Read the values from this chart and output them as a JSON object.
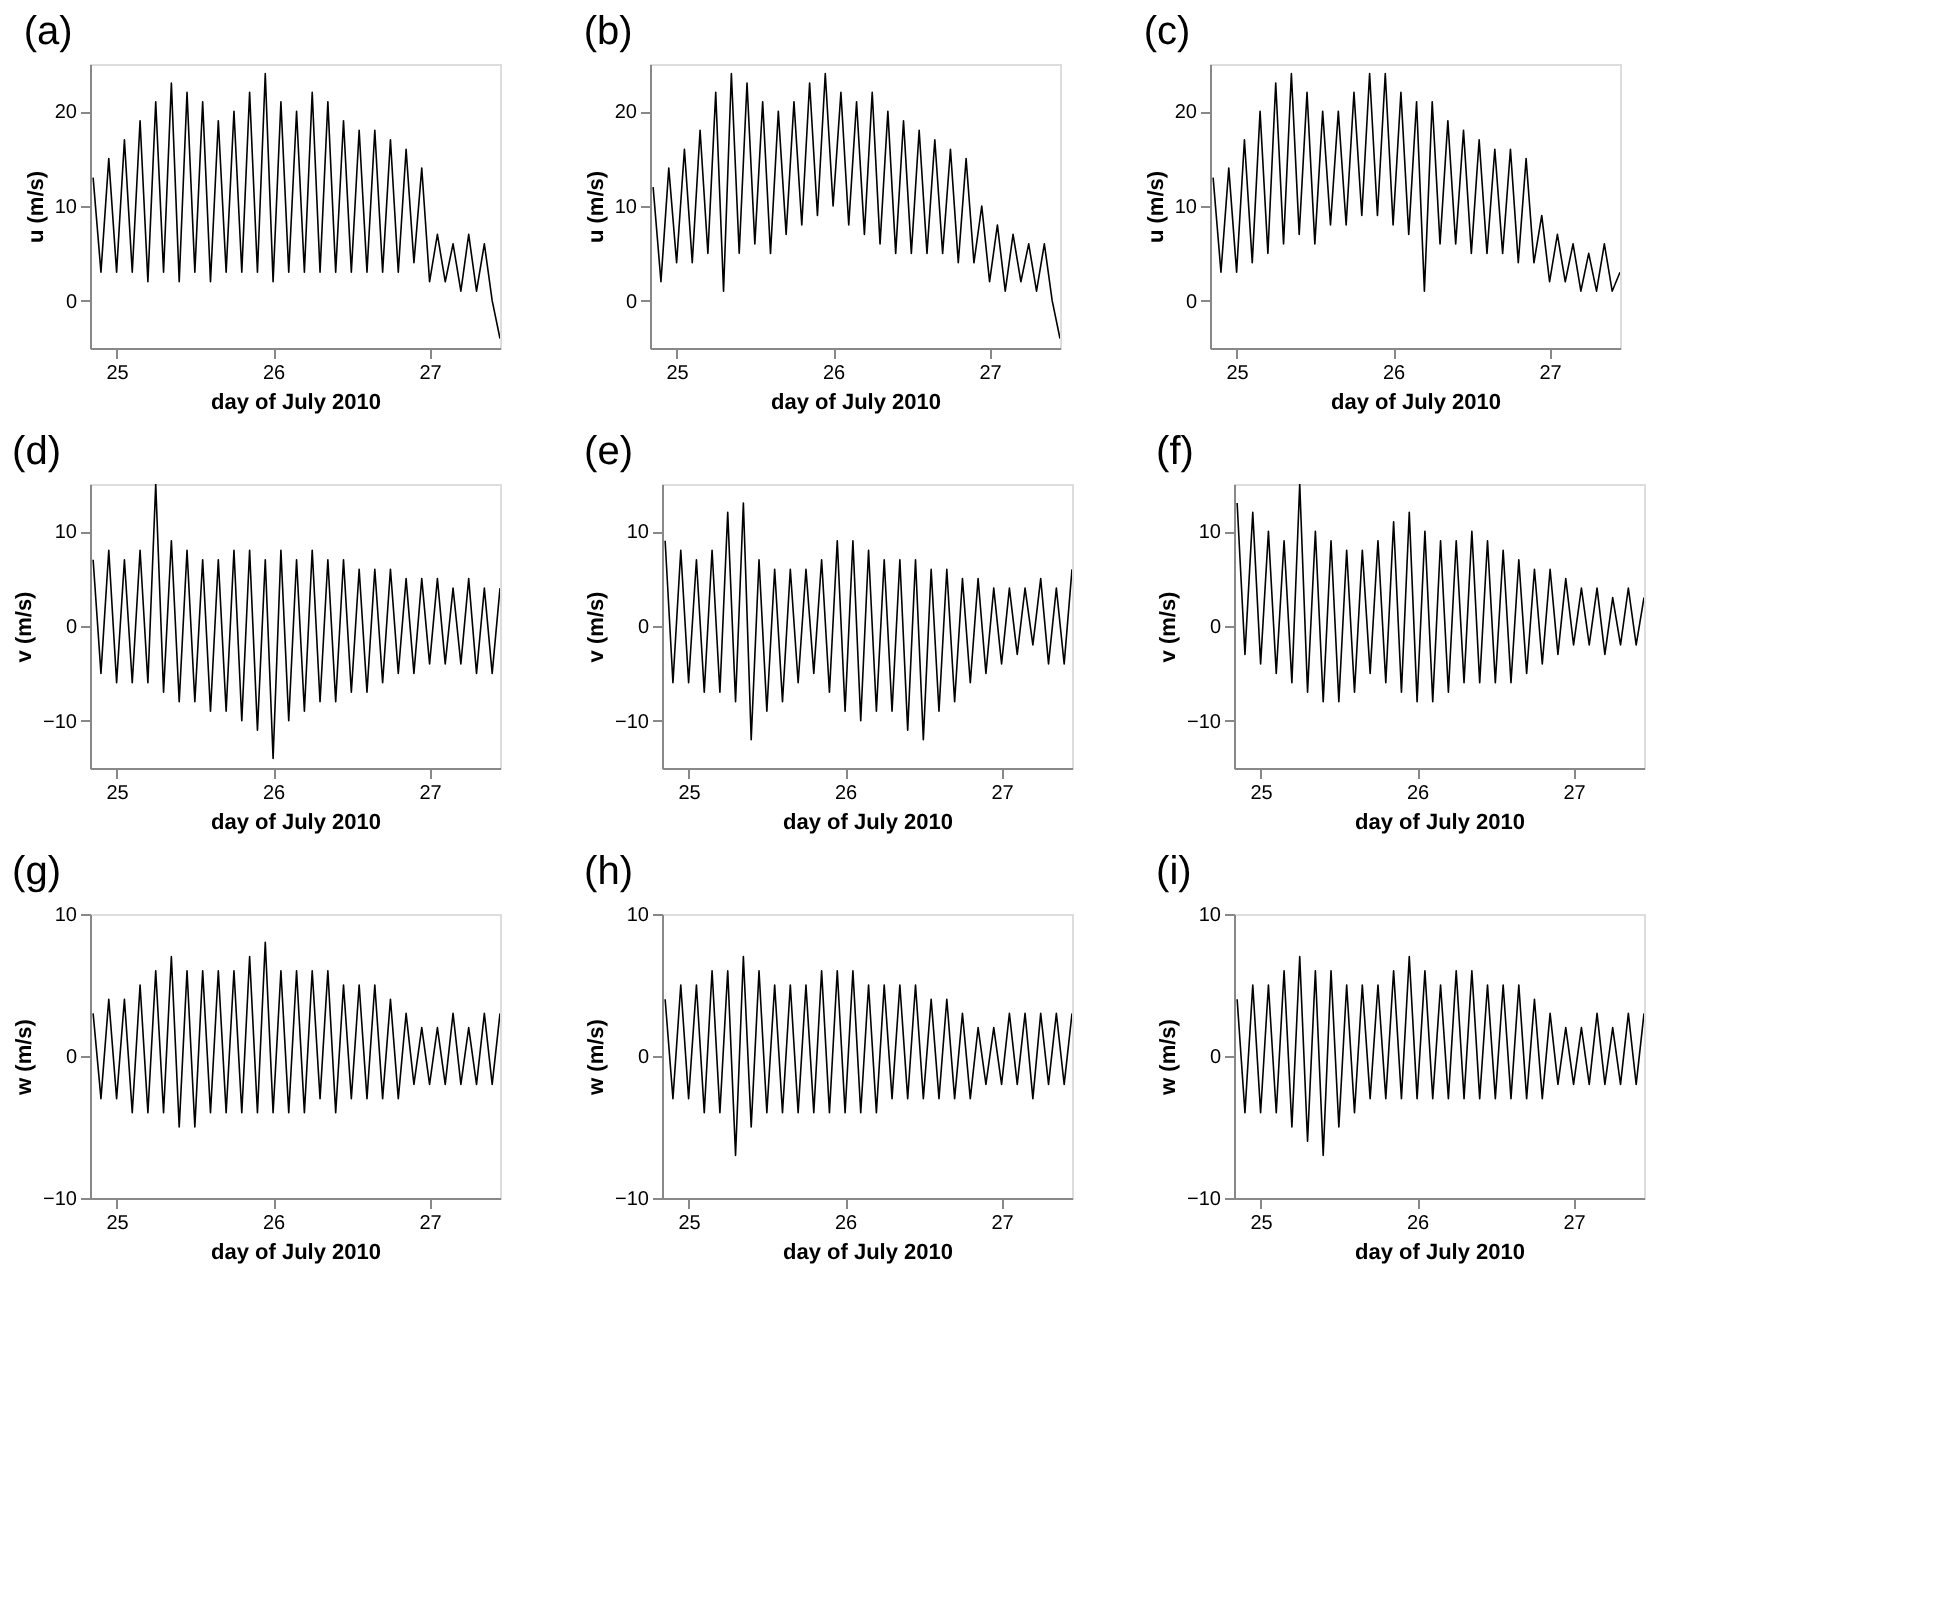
{
  "chart_data": [
    {
      "type": "line",
      "title": "(a)",
      "xlabel": "day of July 2010",
      "ylabel": "u (m/s)",
      "xlim": [
        24.83,
        27.45
      ],
      "xticks": [
        25,
        26,
        27
      ],
      "ylim": [
        -5,
        25
      ],
      "yticks": [
        0,
        10,
        20
      ],
      "x": [
        24.85,
        24.9,
        24.95,
        25,
        25.05,
        25.1,
        25.15,
        25.2,
        25.25,
        25.3,
        25.35,
        25.4,
        25.45,
        25.5,
        25.55,
        25.6,
        25.65,
        25.7,
        25.75,
        25.8,
        25.85,
        25.9,
        25.95,
        26,
        26.05,
        26.1,
        26.15,
        26.2,
        26.25,
        26.3,
        26.35,
        26.4,
        26.45,
        26.5,
        26.55,
        26.6,
        26.65,
        26.7,
        26.75,
        26.8,
        26.85,
        26.9,
        26.95,
        27,
        27.05,
        27.1,
        27.15,
        27.2,
        27.25,
        27.3,
        27.35,
        27.4,
        27.45
      ],
      "series": [
        {
          "color": "#000000",
          "values": [
            13,
            3,
            15,
            3,
            17,
            3,
            19,
            2,
            21,
            3,
            23,
            2,
            22,
            3,
            21,
            2,
            19,
            3,
            20,
            3,
            22,
            3,
            24,
            2,
            21,
            3,
            20,
            3,
            22,
            3,
            21,
            3,
            19,
            3,
            18,
            3,
            18,
            3,
            17,
            3,
            16,
            4,
            14,
            2,
            7,
            2,
            6,
            1,
            7,
            1,
            6,
            0,
            -4
          ]
        }
      ]
    },
    {
      "type": "line",
      "title": "(b)",
      "xlabel": "day of July 2010",
      "ylabel": "u (m/s)",
      "xlim": [
        24.83,
        27.45
      ],
      "xticks": [
        25,
        26,
        27
      ],
      "ylim": [
        -5,
        25
      ],
      "yticks": [
        0,
        10,
        20
      ],
      "x": [
        24.85,
        24.9,
        24.95,
        25,
        25.05,
        25.1,
        25.15,
        25.2,
        25.25,
        25.3,
        25.35,
        25.4,
        25.45,
        25.5,
        25.55,
        25.6,
        25.65,
        25.7,
        25.75,
        25.8,
        25.85,
        25.9,
        25.95,
        26,
        26.05,
        26.1,
        26.15,
        26.2,
        26.25,
        26.3,
        26.35,
        26.4,
        26.45,
        26.5,
        26.55,
        26.6,
        26.65,
        26.7,
        26.75,
        26.8,
        26.85,
        26.9,
        26.95,
        27,
        27.05,
        27.1,
        27.15,
        27.2,
        27.25,
        27.3,
        27.35,
        27.4,
        27.45
      ],
      "series": [
        {
          "color": "#000000",
          "values": [
            12,
            2,
            14,
            4,
            16,
            4,
            18,
            5,
            22,
            1,
            24,
            5,
            23,
            6,
            21,
            5,
            20,
            7,
            21,
            8,
            23,
            9,
            24,
            10,
            22,
            8,
            21,
            7,
            22,
            6,
            20,
            5,
            19,
            5,
            18,
            5,
            17,
            5,
            16,
            4,
            15,
            4,
            10,
            2,
            8,
            1,
            7,
            2,
            6,
            1,
            6,
            0,
            -4
          ]
        }
      ]
    },
    {
      "type": "line",
      "title": "(c)",
      "xlabel": "day of July 2010",
      "ylabel": "u (m/s)",
      "xlim": [
        24.83,
        27.45
      ],
      "xticks": [
        25,
        26,
        27
      ],
      "ylim": [
        -5,
        25
      ],
      "yticks": [
        0,
        10,
        20
      ],
      "x": [
        24.85,
        24.9,
        24.95,
        25,
        25.05,
        25.1,
        25.15,
        25.2,
        25.25,
        25.3,
        25.35,
        25.4,
        25.45,
        25.5,
        25.55,
        25.6,
        25.65,
        25.7,
        25.75,
        25.8,
        25.85,
        25.9,
        25.95,
        26,
        26.05,
        26.1,
        26.15,
        26.2,
        26.25,
        26.3,
        26.35,
        26.4,
        26.45,
        26.5,
        26.55,
        26.6,
        26.65,
        26.7,
        26.75,
        26.8,
        26.85,
        26.9,
        26.95,
        27,
        27.05,
        27.1,
        27.15,
        27.2,
        27.25,
        27.3,
        27.35,
        27.4,
        27.45
      ],
      "series": [
        {
          "color": "#000000",
          "values": [
            13,
            3,
            14,
            3,
            17,
            4,
            20,
            5,
            23,
            6,
            24,
            7,
            22,
            6,
            20,
            8,
            20,
            8,
            22,
            9,
            24,
            9,
            24,
            8,
            22,
            7,
            21,
            1,
            21,
            6,
            19,
            6,
            18,
            5,
            17,
            5,
            16,
            5,
            16,
            4,
            15,
            4,
            9,
            2,
            7,
            2,
            6,
            1,
            5,
            1,
            6,
            1,
            3
          ]
        }
      ]
    },
    {
      "type": "line",
      "title": "(d)",
      "xlabel": "day of July 2010",
      "ylabel": "v (m/s)",
      "xlim": [
        24.83,
        27.45
      ],
      "xticks": [
        25,
        26,
        27
      ],
      "ylim": [
        -15,
        15
      ],
      "yticks": [
        -10,
        0,
        10
      ],
      "x": [
        24.85,
        24.9,
        24.95,
        25,
        25.05,
        25.1,
        25.15,
        25.2,
        25.25,
        25.3,
        25.35,
        25.4,
        25.45,
        25.5,
        25.55,
        25.6,
        25.65,
        25.7,
        25.75,
        25.8,
        25.85,
        25.9,
        25.95,
        26,
        26.05,
        26.1,
        26.15,
        26.2,
        26.25,
        26.3,
        26.35,
        26.4,
        26.45,
        26.5,
        26.55,
        26.6,
        26.65,
        26.7,
        26.75,
        26.8,
        26.85,
        26.9,
        26.95,
        27,
        27.05,
        27.1,
        27.15,
        27.2,
        27.25,
        27.3,
        27.35,
        27.4,
        27.45
      ],
      "series": [
        {
          "color": "#000000",
          "values": [
            7,
            -5,
            8,
            -6,
            7,
            -6,
            8,
            -6,
            15,
            -7,
            9,
            -8,
            8,
            -8,
            7,
            -9,
            7,
            -9,
            8,
            -10,
            8,
            -11,
            7,
            -14,
            8,
            -10,
            7,
            -9,
            8,
            -8,
            7,
            -8,
            7,
            -7,
            6,
            -7,
            6,
            -6,
            6,
            -5,
            5,
            -5,
            5,
            -4,
            5,
            -4,
            4,
            -4,
            5,
            -5,
            4,
            -5,
            4
          ]
        }
      ]
    },
    {
      "type": "line",
      "title": "(e)",
      "xlabel": "day of July 2010",
      "ylabel": "v (m/s)",
      "xlim": [
        24.83,
        27.45
      ],
      "xticks": [
        25,
        26,
        27
      ],
      "ylim": [
        -15,
        15
      ],
      "yticks": [
        -10,
        0,
        10
      ],
      "x": [
        24.85,
        24.9,
        24.95,
        25,
        25.05,
        25.1,
        25.15,
        25.2,
        25.25,
        25.3,
        25.35,
        25.4,
        25.45,
        25.5,
        25.55,
        25.6,
        25.65,
        25.7,
        25.75,
        25.8,
        25.85,
        25.9,
        25.95,
        26,
        26.05,
        26.1,
        26.15,
        26.2,
        26.25,
        26.3,
        26.35,
        26.4,
        26.45,
        26.5,
        26.55,
        26.6,
        26.65,
        26.7,
        26.75,
        26.8,
        26.85,
        26.9,
        26.95,
        27,
        27.05,
        27.1,
        27.15,
        27.2,
        27.25,
        27.3,
        27.35,
        27.4,
        27.45
      ],
      "series": [
        {
          "color": "#000000",
          "values": [
            9,
            -6,
            8,
            -6,
            7,
            -7,
            8,
            -7,
            12,
            -8,
            13,
            -12,
            7,
            -9,
            6,
            -8,
            6,
            -6,
            6,
            -5,
            7,
            -7,
            9,
            -9,
            9,
            -10,
            8,
            -9,
            7,
            -9,
            7,
            -11,
            7,
            -12,
            6,
            -9,
            6,
            -8,
            5,
            -6,
            5,
            -5,
            4,
            -4,
            4,
            -3,
            4,
            -2,
            5,
            -4,
            4,
            -4,
            6
          ]
        }
      ]
    },
    {
      "type": "line",
      "title": "(f)",
      "xlabel": "day of July 2010",
      "ylabel": "v (m/s)",
      "xlim": [
        24.83,
        27.45
      ],
      "xticks": [
        25,
        26,
        27
      ],
      "ylim": [
        -15,
        15
      ],
      "yticks": [
        -10,
        0,
        10
      ],
      "x": [
        24.85,
        24.9,
        24.95,
        25,
        25.05,
        25.1,
        25.15,
        25.2,
        25.25,
        25.3,
        25.35,
        25.4,
        25.45,
        25.5,
        25.55,
        25.6,
        25.65,
        25.7,
        25.75,
        25.8,
        25.85,
        25.9,
        25.95,
        26,
        26.05,
        26.1,
        26.15,
        26.2,
        26.25,
        26.3,
        26.35,
        26.4,
        26.45,
        26.5,
        26.55,
        26.6,
        26.65,
        26.7,
        26.75,
        26.8,
        26.85,
        26.9,
        26.95,
        27,
        27.05,
        27.1,
        27.15,
        27.2,
        27.25,
        27.3,
        27.35,
        27.4,
        27.45
      ],
      "series": [
        {
          "color": "#000000",
          "values": [
            13,
            -3,
            12,
            -4,
            10,
            -5,
            9,
            -6,
            15,
            -7,
            10,
            -8,
            9,
            -8,
            8,
            -7,
            8,
            -5,
            9,
            -6,
            11,
            -7,
            12,
            -8,
            10,
            -8,
            9,
            -7,
            9,
            -6,
            10,
            -6,
            9,
            -6,
            8,
            -6,
            7,
            -5,
            6,
            -4,
            6,
            -3,
            5,
            -2,
            4,
            -2,
            4,
            -3,
            3,
            -2,
            4,
            -2,
            3
          ]
        }
      ]
    },
    {
      "type": "line",
      "title": "(g)",
      "xlabel": "day of July 2010",
      "ylabel": "w (m/s)",
      "xlim": [
        24.83,
        27.45
      ],
      "xticks": [
        25,
        26,
        27
      ],
      "ylim": [
        -10,
        10
      ],
      "yticks": [
        -10,
        0,
        10
      ],
      "x": [
        24.85,
        24.9,
        24.95,
        25,
        25.05,
        25.1,
        25.15,
        25.2,
        25.25,
        25.3,
        25.35,
        25.4,
        25.45,
        25.5,
        25.55,
        25.6,
        25.65,
        25.7,
        25.75,
        25.8,
        25.85,
        25.9,
        25.95,
        26,
        26.05,
        26.1,
        26.15,
        26.2,
        26.25,
        26.3,
        26.35,
        26.4,
        26.45,
        26.5,
        26.55,
        26.6,
        26.65,
        26.7,
        26.75,
        26.8,
        26.85,
        26.9,
        26.95,
        27,
        27.05,
        27.1,
        27.15,
        27.2,
        27.25,
        27.3,
        27.35,
        27.4,
        27.45
      ],
      "series": [
        {
          "color": "#000000",
          "values": [
            3,
            -3,
            4,
            -3,
            4,
            -4,
            5,
            -4,
            6,
            -4,
            7,
            -5,
            6,
            -5,
            6,
            -4,
            6,
            -4,
            6,
            -4,
            7,
            -4,
            8,
            -4,
            6,
            -4,
            6,
            -4,
            6,
            -3,
            6,
            -4,
            5,
            -3,
            5,
            -3,
            5,
            -3,
            4,
            -3,
            3,
            -2,
            2,
            -2,
            2,
            -2,
            3,
            -2,
            2,
            -2,
            3,
            -2,
            3
          ]
        }
      ]
    },
    {
      "type": "line",
      "title": "(h)",
      "xlabel": "day of July 2010",
      "ylabel": "w (m/s)",
      "xlim": [
        24.83,
        27.45
      ],
      "xticks": [
        25,
        26,
        27
      ],
      "ylim": [
        -10,
        10
      ],
      "yticks": [
        -10,
        0,
        10
      ],
      "x": [
        24.85,
        24.9,
        24.95,
        25,
        25.05,
        25.1,
        25.15,
        25.2,
        25.25,
        25.3,
        25.35,
        25.4,
        25.45,
        25.5,
        25.55,
        25.6,
        25.65,
        25.7,
        25.75,
        25.8,
        25.85,
        25.9,
        25.95,
        26,
        26.05,
        26.1,
        26.15,
        26.2,
        26.25,
        26.3,
        26.35,
        26.4,
        26.45,
        26.5,
        26.55,
        26.6,
        26.65,
        26.7,
        26.75,
        26.8,
        26.85,
        26.9,
        26.95,
        27,
        27.05,
        27.1,
        27.15,
        27.2,
        27.25,
        27.3,
        27.35,
        27.4,
        27.45
      ],
      "series": [
        {
          "color": "#000000",
          "values": [
            4,
            -3,
            5,
            -3,
            5,
            -4,
            6,
            -4,
            6,
            -7,
            7,
            -5,
            6,
            -4,
            5,
            -4,
            5,
            -4,
            5,
            -4,
            6,
            -4,
            6,
            -4,
            6,
            -4,
            5,
            -4,
            5,
            -3,
            5,
            -3,
            5,
            -3,
            4,
            -3,
            4,
            -3,
            3,
            -3,
            2,
            -2,
            2,
            -2,
            3,
            -2,
            3,
            -3,
            3,
            -2,
            3,
            -2,
            3
          ]
        }
      ]
    },
    {
      "type": "line",
      "title": "(i)",
      "xlabel": "day of July 2010",
      "ylabel": "w (m/s)",
      "xlim": [
        24.83,
        27.45
      ],
      "xticks": [
        25,
        26,
        27
      ],
      "ylim": [
        -10,
        10
      ],
      "yticks": [
        -10,
        0,
        10
      ],
      "x": [
        24.85,
        24.9,
        24.95,
        25,
        25.05,
        25.1,
        25.15,
        25.2,
        25.25,
        25.3,
        25.35,
        25.4,
        25.45,
        25.5,
        25.55,
        25.6,
        25.65,
        25.7,
        25.75,
        25.8,
        25.85,
        25.9,
        25.95,
        26,
        26.05,
        26.1,
        26.15,
        26.2,
        26.25,
        26.3,
        26.35,
        26.4,
        26.45,
        26.5,
        26.55,
        26.6,
        26.65,
        26.7,
        26.75,
        26.8,
        26.85,
        26.9,
        26.95,
        27,
        27.05,
        27.1,
        27.15,
        27.2,
        27.25,
        27.3,
        27.35,
        27.4,
        27.45
      ],
      "series": [
        {
          "color": "#000000",
          "values": [
            4,
            -4,
            5,
            -4,
            5,
            -4,
            6,
            -5,
            7,
            -6,
            6,
            -7,
            6,
            -5,
            5,
            -4,
            5,
            -3,
            5,
            -3,
            6,
            -3,
            7,
            -3,
            6,
            -3,
            5,
            -3,
            6,
            -3,
            6,
            -3,
            5,
            -3,
            5,
            -3,
            5,
            -3,
            4,
            -3,
            3,
            -2,
            2,
            -2,
            2,
            -2,
            3,
            -2,
            2,
            -2,
            3,
            -2,
            3
          ]
        }
      ]
    }
  ]
}
